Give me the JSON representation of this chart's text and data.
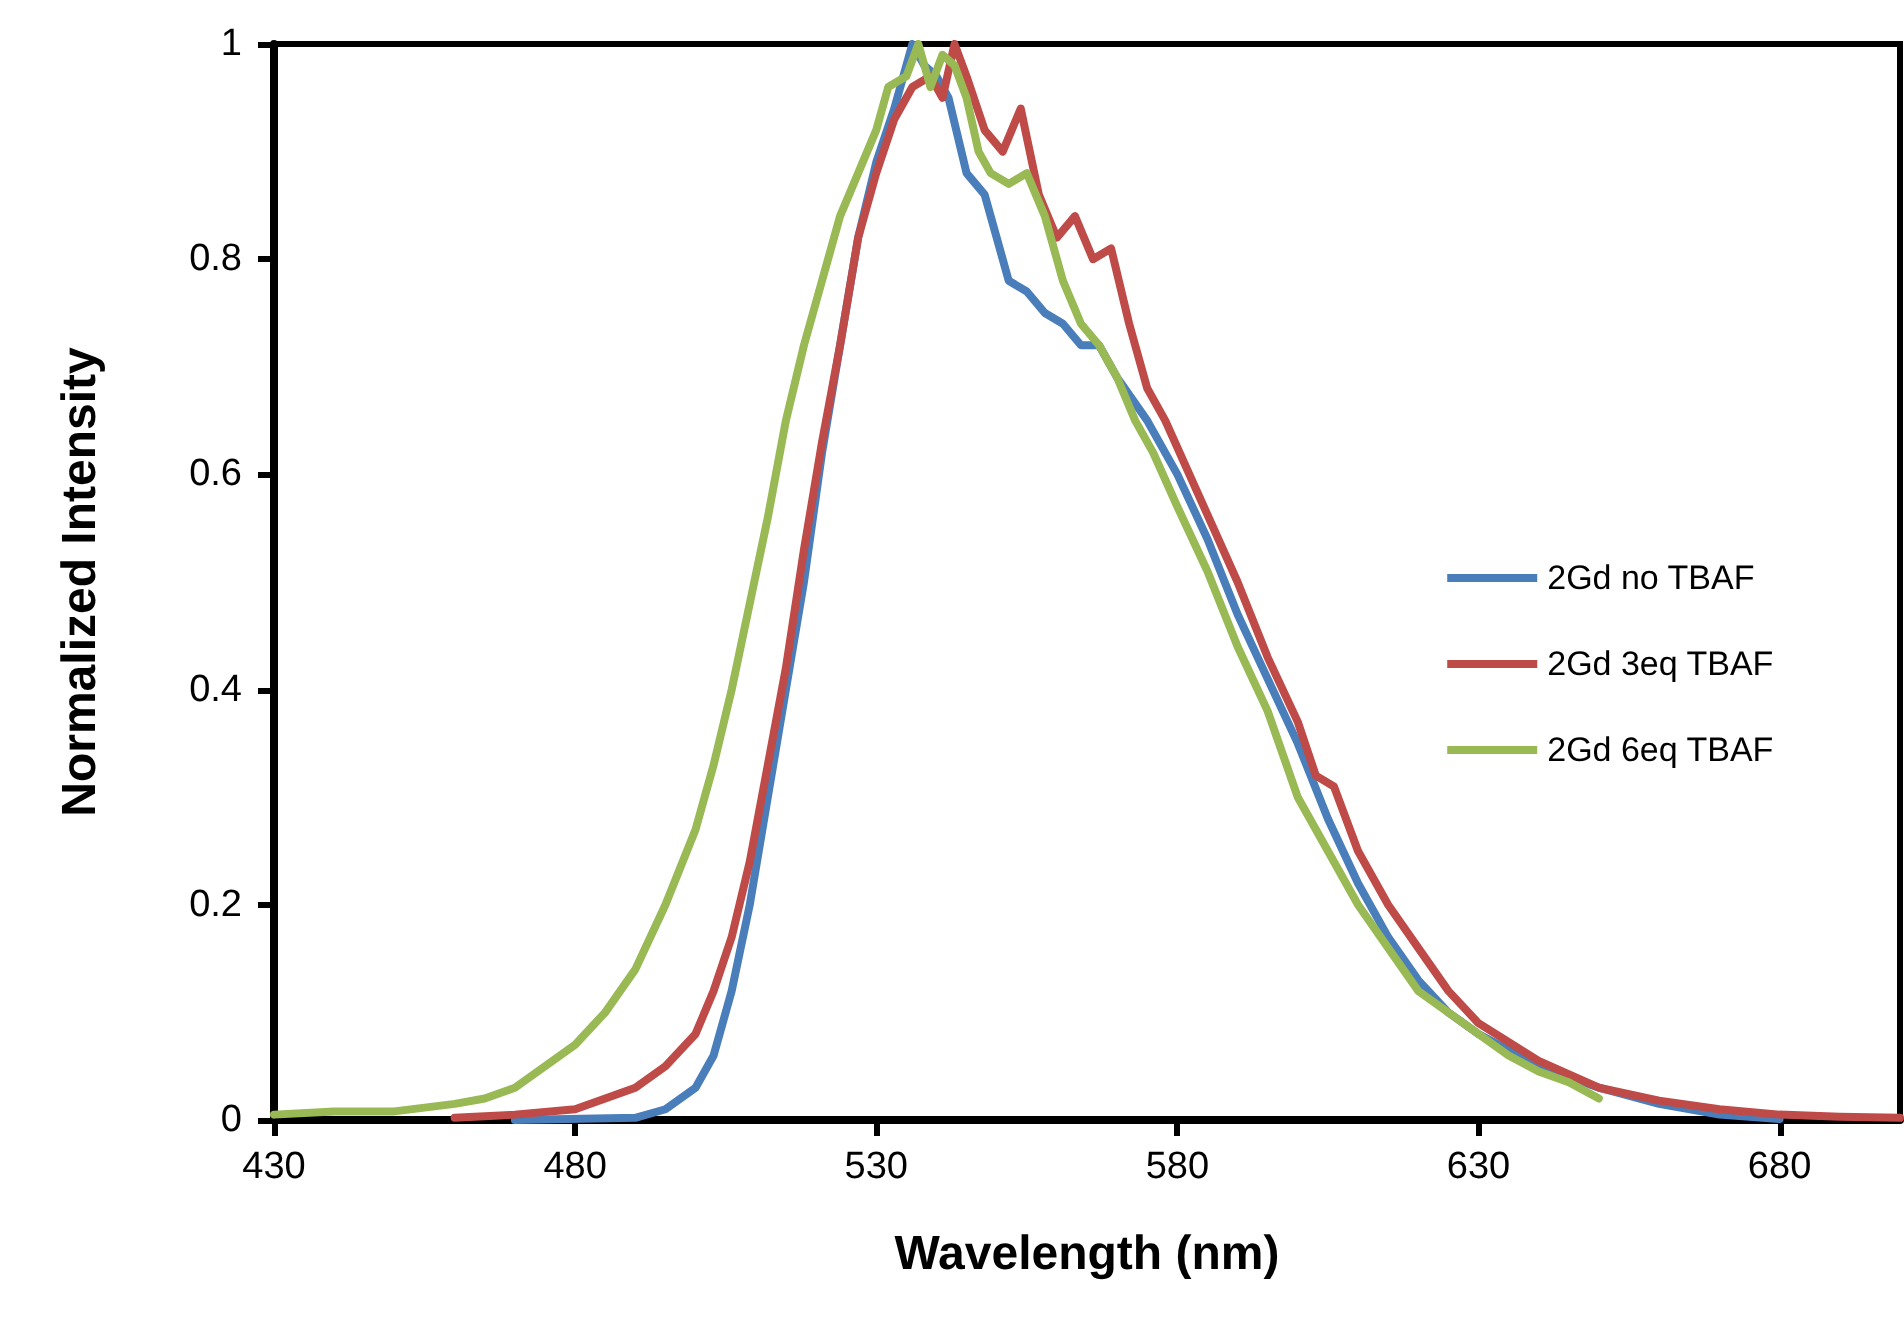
{
  "chart_data": {
    "type": "line",
    "xlabel": "Wavelength (nm)",
    "ylabel": "Normalized Intensity",
    "xlim": [
      430,
      700
    ],
    "xticks": [
      430,
      480,
      530,
      580,
      630,
      680
    ],
    "ylim": [
      0,
      1
    ],
    "yticks": [
      0,
      0.2,
      0.4,
      0.6,
      0.8,
      1
    ],
    "grid": false,
    "legend": "right",
    "marker": "none",
    "line_style": "solid",
    "series": [
      {
        "name": "2Gd no TBAF",
        "color": "#4a7ebb",
        "x": [
          470,
          490,
          495,
          500,
          503,
          506,
          509,
          512,
          515,
          518,
          521,
          524,
          527,
          530,
          533,
          536,
          538,
          540,
          542,
          545,
          548,
          550,
          552,
          555,
          558,
          561,
          564,
          567,
          570,
          575,
          580,
          585,
          590,
          595,
          600,
          605,
          610,
          615,
          620,
          625,
          630,
          640,
          650,
          660,
          670,
          680
        ],
        "values": [
          0,
          0.002,
          0.01,
          0.03,
          0.06,
          0.12,
          0.2,
          0.3,
          0.4,
          0.5,
          0.62,
          0.72,
          0.82,
          0.89,
          0.94,
          1,
          0.98,
          0.97,
          0.95,
          0.88,
          0.86,
          0.82,
          0.78,
          0.77,
          0.75,
          0.74,
          0.72,
          0.72,
          0.69,
          0.65,
          0.6,
          0.54,
          0.47,
          0.41,
          0.35,
          0.28,
          0.22,
          0.17,
          0.13,
          0.1,
          0.08,
          0.05,
          0.03,
          0.015,
          0.005,
          0.001
        ]
      },
      {
        "name": "2Gd 3eq TBAF",
        "color": "#be4b48",
        "x": [
          460,
          470,
          480,
          485,
          490,
          495,
          500,
          503,
          506,
          509,
          512,
          515,
          518,
          521,
          524,
          527,
          530,
          533,
          536,
          539,
          541,
          543,
          545,
          548,
          551,
          554,
          557,
          560,
          563,
          566,
          569,
          572,
          575,
          578,
          582,
          586,
          590,
          595,
          600,
          603,
          606,
          610,
          615,
          620,
          625,
          630,
          640,
          650,
          660,
          670,
          680,
          690,
          700
        ],
        "values": [
          0.002,
          0.005,
          0.01,
          0.02,
          0.03,
          0.05,
          0.08,
          0.12,
          0.17,
          0.24,
          0.33,
          0.42,
          0.53,
          0.63,
          0.72,
          0.82,
          0.88,
          0.93,
          0.96,
          0.97,
          0.95,
          1,
          0.97,
          0.92,
          0.9,
          0.94,
          0.86,
          0.82,
          0.84,
          0.8,
          0.81,
          0.74,
          0.68,
          0.65,
          0.6,
          0.55,
          0.5,
          0.43,
          0.37,
          0.32,
          0.31,
          0.25,
          0.2,
          0.16,
          0.12,
          0.09,
          0.055,
          0.03,
          0.018,
          0.01,
          0.005,
          0.003,
          0.002
        ]
      },
      {
        "name": "2Gd 6eq TBAF",
        "color": "#98b954",
        "x": [
          430,
          440,
          450,
          460,
          465,
          470,
          475,
          480,
          485,
          490,
          495,
          500,
          503,
          506,
          509,
          512,
          515,
          518,
          521,
          524,
          527,
          530,
          532,
          535,
          537,
          539,
          541,
          543,
          545,
          547,
          549,
          552,
          555,
          558,
          561,
          564,
          567,
          570,
          573,
          576,
          580,
          585,
          590,
          595,
          600,
          605,
          610,
          615,
          620,
          625,
          630,
          635,
          640,
          645,
          650
        ],
        "values": [
          0.005,
          0.008,
          0.008,
          0.015,
          0.02,
          0.03,
          0.05,
          0.07,
          0.1,
          0.14,
          0.2,
          0.27,
          0.33,
          0.4,
          0.48,
          0.56,
          0.65,
          0.72,
          0.78,
          0.84,
          0.88,
          0.92,
          0.96,
          0.97,
          1,
          0.96,
          0.99,
          0.98,
          0.95,
          0.9,
          0.88,
          0.87,
          0.88,
          0.84,
          0.78,
          0.74,
          0.72,
          0.69,
          0.65,
          0.62,
          0.57,
          0.51,
          0.44,
          0.38,
          0.3,
          0.25,
          0.2,
          0.16,
          0.12,
          0.1,
          0.08,
          0.06,
          0.045,
          0.035,
          0.02
        ]
      }
    ]
  }
}
